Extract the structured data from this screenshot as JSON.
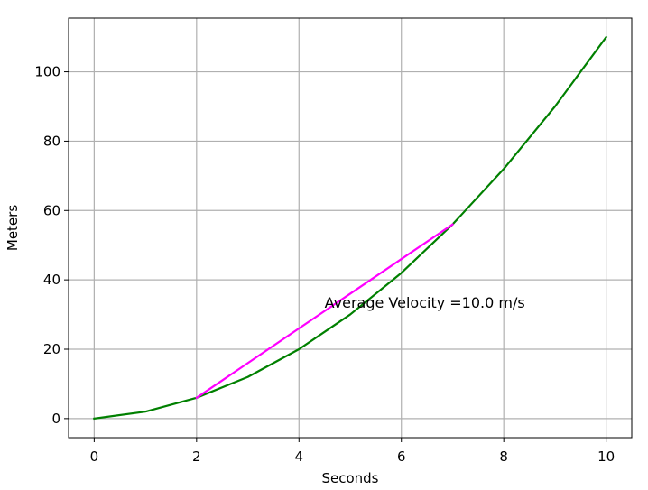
{
  "chart_data": {
    "type": "line",
    "xlabel": "Seconds",
    "ylabel": "Meters",
    "xlim": [
      -0.5,
      10.5
    ],
    "ylim": [
      -5.5,
      115.5
    ],
    "xticks": [
      0,
      2,
      4,
      6,
      8,
      10
    ],
    "yticks": [
      0,
      20,
      40,
      60,
      80,
      100
    ],
    "grid": true,
    "series": [
      {
        "color": "#008000",
        "x": [
          0,
          1,
          2,
          3,
          4,
          5,
          6,
          7,
          8,
          9,
          10
        ],
        "y": [
          0,
          2,
          6,
          12,
          20,
          30,
          42,
          56,
          72,
          90,
          110
        ]
      },
      {
        "color": "#ff00ff",
        "x": [
          2,
          7
        ],
        "y": [
          6,
          56
        ]
      }
    ],
    "annotations": [
      {
        "text": "Average Velocity =10.0 m/s",
        "x": 4.5,
        "y": 32
      }
    ]
  }
}
